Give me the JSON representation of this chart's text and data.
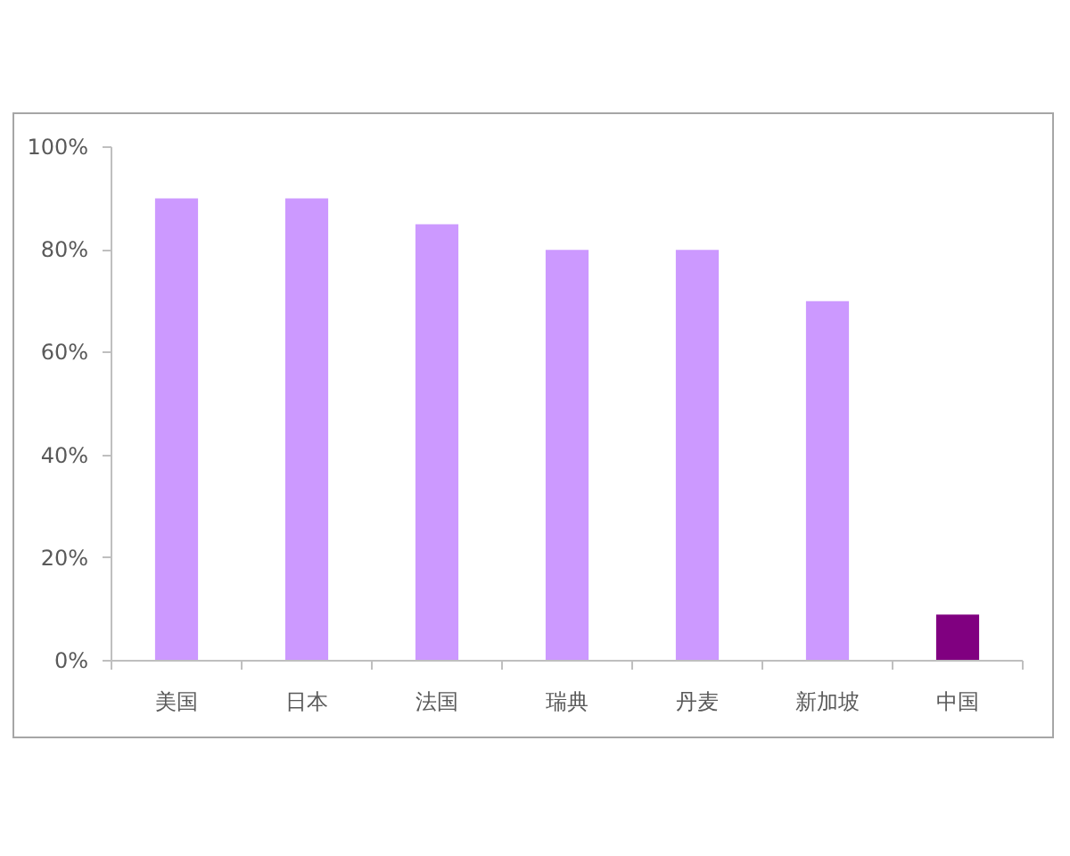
{
  "chart_data": {
    "type": "bar",
    "categories": [
      "美国",
      "日本",
      "法国",
      "瑞典",
      "丹麦",
      "新加坡",
      "中国"
    ],
    "values": [
      90,
      90,
      85,
      80,
      80,
      70,
      9
    ],
    "colors": [
      "#cc99ff",
      "#cc99ff",
      "#cc99ff",
      "#cc99ff",
      "#cc99ff",
      "#cc99ff",
      "#800080"
    ],
    "ylim": [
      0,
      100
    ],
    "yticks": [
      {
        "value": 0,
        "label": "0%"
      },
      {
        "value": 20,
        "label": "20%"
      },
      {
        "value": 40,
        "label": "40%"
      },
      {
        "value": 60,
        "label": "60%"
      },
      {
        "value": 80,
        "label": "80%"
      },
      {
        "value": 100,
        "label": "100%"
      }
    ]
  }
}
